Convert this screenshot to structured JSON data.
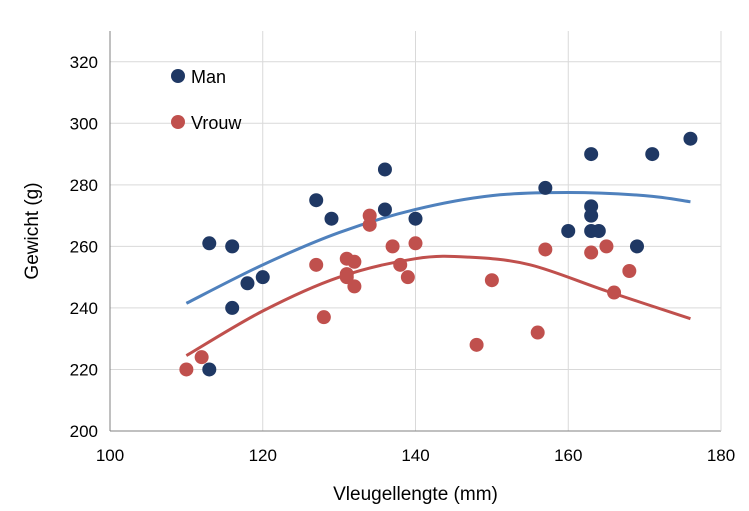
{
  "chart_data": {
    "type": "scatter",
    "title": "",
    "xlabel": "Vleugellengte (mm)",
    "ylabel": "Gewicht (g)",
    "xlim": [
      100,
      180
    ],
    "ylim": [
      200,
      330
    ],
    "xticks": [
      100,
      120,
      140,
      160,
      180
    ],
    "yticks": [
      200,
      220,
      240,
      260,
      280,
      300,
      320
    ],
    "grid": true,
    "legend_position": "top-left",
    "series": [
      {
        "name": "Man",
        "color": "#1f3864",
        "trend_color": "#4f81bd",
        "points": [
          [
            113,
            261
          ],
          [
            113,
            220
          ],
          [
            116,
            260
          ],
          [
            116,
            240
          ],
          [
            118,
            248
          ],
          [
            120,
            250
          ],
          [
            127,
            275
          ],
          [
            129,
            269
          ],
          [
            136,
            285
          ],
          [
            136,
            272
          ],
          [
            140,
            269
          ],
          [
            157,
            279
          ],
          [
            160,
            265
          ],
          [
            163,
            290
          ],
          [
            163,
            273
          ],
          [
            163,
            270
          ],
          [
            163,
            265
          ],
          [
            164,
            265
          ],
          [
            169,
            260
          ],
          [
            171,
            290
          ],
          [
            176,
            295
          ]
        ],
        "trend": [
          [
            110,
            241.5
          ],
          [
            120,
            254
          ],
          [
            130,
            264.5
          ],
          [
            140,
            272
          ],
          [
            150,
            276.5
          ],
          [
            160,
            277.5
          ],
          [
            170,
            276.5
          ],
          [
            176,
            274.5
          ]
        ]
      },
      {
        "name": "Vrouw",
        "color": "#c0504d",
        "trend_color": "#c0504d",
        "points": [
          [
            110,
            220
          ],
          [
            112,
            224
          ],
          [
            127,
            254
          ],
          [
            128,
            237
          ],
          [
            131,
            256
          ],
          [
            131,
            251
          ],
          [
            131,
            250
          ],
          [
            132,
            255
          ],
          [
            132,
            247
          ],
          [
            134,
            270
          ],
          [
            134,
            267
          ],
          [
            137,
            260
          ],
          [
            138,
            254
          ],
          [
            139,
            250
          ],
          [
            140,
            261
          ],
          [
            148,
            228
          ],
          [
            150,
            249
          ],
          [
            156,
            232
          ],
          [
            157,
            259
          ],
          [
            163,
            258
          ],
          [
            165,
            260
          ],
          [
            166,
            245
          ],
          [
            168,
            252
          ]
        ],
        "trend": [
          [
            110,
            224.5
          ],
          [
            120,
            239
          ],
          [
            130,
            250
          ],
          [
            140,
            256
          ],
          [
            147,
            256.5
          ],
          [
            155,
            254
          ],
          [
            165,
            245.5
          ],
          [
            176,
            236.5
          ]
        ]
      }
    ]
  }
}
